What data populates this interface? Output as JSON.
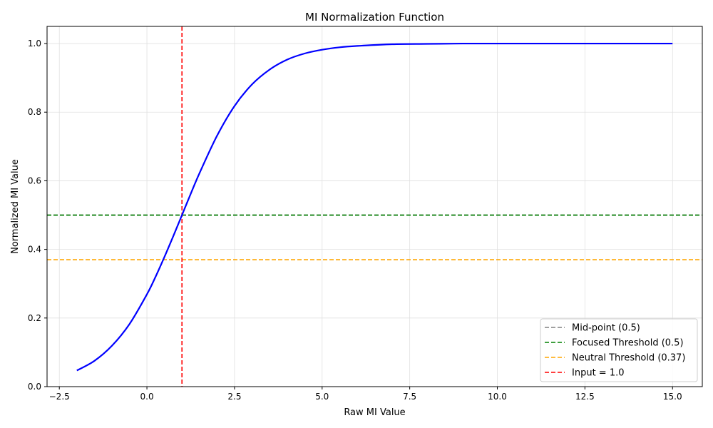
{
  "chart_data": {
    "type": "line",
    "title": "MI Normalization Function",
    "xlabel": "Raw MI Value",
    "ylabel": "Normalized MI Value",
    "xlim": [
      -2.85,
      15.85
    ],
    "ylim": [
      0,
      1.05
    ],
    "grid": true,
    "legend_position": "bottom-right",
    "x_ticks": [
      -2.5,
      0.0,
      2.5,
      5.0,
      7.5,
      10.0,
      12.5,
      15.0
    ],
    "x_tick_labels": [
      "−2.5",
      "0.0",
      "2.5",
      "5.0",
      "7.5",
      "10.0",
      "12.5",
      "15.0"
    ],
    "y_ticks": [
      0.0,
      0.2,
      0.4,
      0.6,
      0.8,
      1.0
    ],
    "y_tick_labels": [
      "0.0",
      "0.2",
      "0.4",
      "0.6",
      "0.8",
      "1.0"
    ],
    "series": [
      {
        "color": "#0000ff",
        "style": "solid",
        "x": [
          -2.0,
          -1.5,
          -1.0,
          -0.5,
          0.0,
          0.25,
          0.5,
          0.75,
          1.0,
          1.25,
          1.5,
          2.0,
          2.5,
          3.0,
          3.5,
          4.0,
          4.5,
          5.0,
          5.5,
          6.0,
          7.0,
          8.0,
          9.0,
          10.0,
          11.0,
          12.0,
          13.0,
          14.0,
          15.0
        ],
        "y": [
          0.047,
          0.075,
          0.119,
          0.182,
          0.269,
          0.321,
          0.378,
          0.438,
          0.5,
          0.562,
          0.622,
          0.731,
          0.818,
          0.881,
          0.924,
          0.953,
          0.971,
          0.982,
          0.989,
          0.993,
          0.998,
          0.999,
          1.0,
          1.0,
          1.0,
          1.0,
          1.0,
          1.0,
          1.0
        ]
      }
    ],
    "reference_lines": [
      {
        "name": "Mid-point (0.5)",
        "orientation": "horizontal",
        "value": 0.5,
        "color": "#808080"
      },
      {
        "name": "Focused Threshold (0.5)",
        "orientation": "horizontal",
        "value": 0.5,
        "color": "#008000"
      },
      {
        "name": "Neutral Threshold (0.37)",
        "orientation": "horizontal",
        "value": 0.37,
        "color": "#ffa500"
      },
      {
        "name": "Input = 1.0",
        "orientation": "vertical",
        "value": 1.0,
        "color": "#ff0000"
      }
    ]
  }
}
